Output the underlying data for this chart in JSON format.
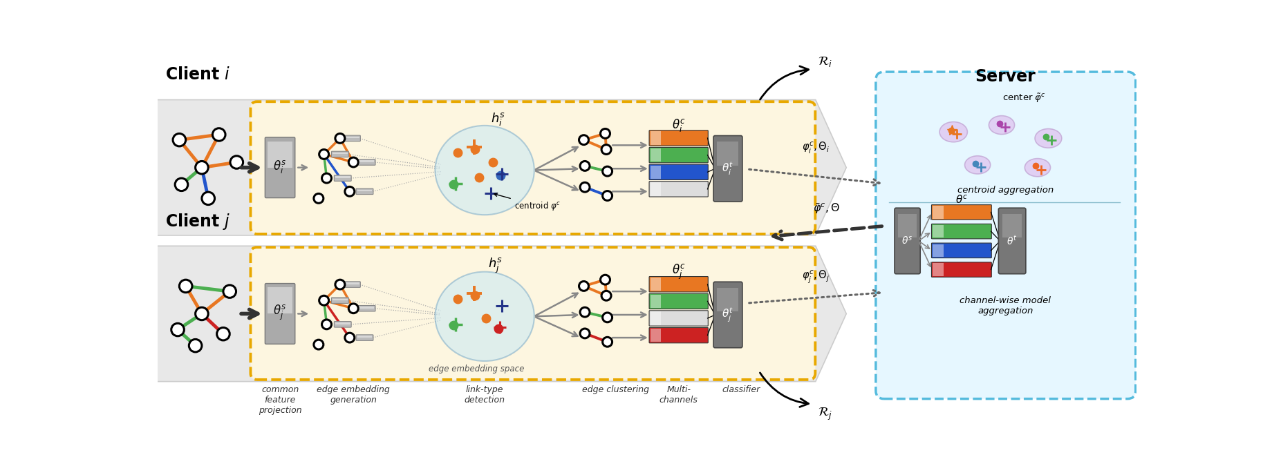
{
  "bg_dashed_box": "#fdf6e0",
  "bg_server": "#e6f7ff",
  "colors": {
    "orange": "#E87722",
    "green": "#4CAF50",
    "blue": "#2255CC",
    "red": "#CC2222",
    "yellow_dash": "#E8A800",
    "light_blue": "#c8e8f5",
    "dark_gray": "#555555",
    "med_gray": "#888888",
    "light_gray": "#cccccc"
  },
  "labels_bottom": [
    "common\nfeature\nprojection",
    "edge embedding\ngeneration",
    "link-type\ndetection",
    "edge clustering",
    "Multi-\nchannels",
    "classifier"
  ]
}
